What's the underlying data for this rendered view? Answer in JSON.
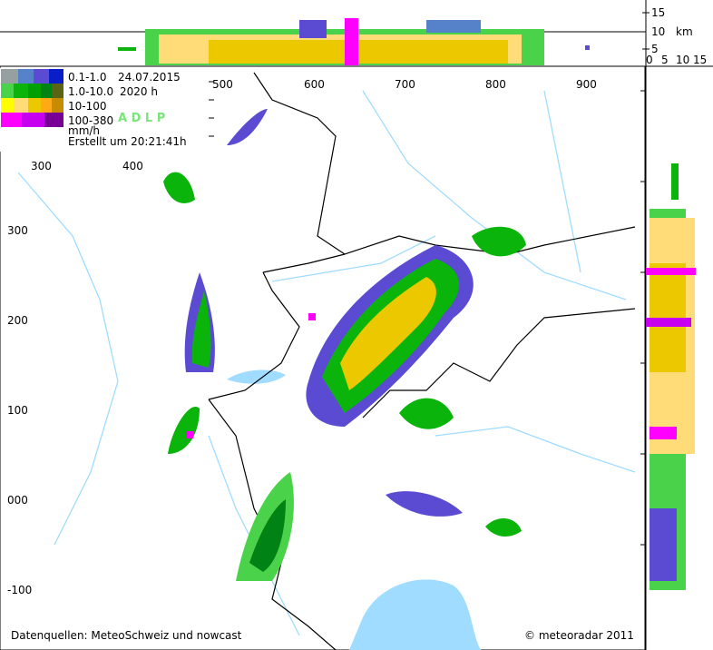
{
  "top_panel": {
    "y_ticks": [
      "15",
      "10",
      "5"
    ],
    "unit": "km"
  },
  "side_panel": {
    "x_ticks": [
      "0",
      "5",
      "10",
      "15"
    ]
  },
  "legend": {
    "rows": [
      {
        "range": "0.1-1.0",
        "colors": [
          "#96a0a0",
          "#5582c8",
          "#5a4bd2",
          "#0a1ec8"
        ]
      },
      {
        "range": "1.0-10.0",
        "colors": [
          "#4bd24b",
          "#0ab40a",
          "#00a000",
          "#008214",
          "#5a6414"
        ]
      },
      {
        "range": "10-100",
        "colors": [
          "#ffff00",
          "#ffdc78",
          "#ebc800",
          "#ffaa14",
          "#c88c00"
        ]
      },
      {
        "range": "100-380",
        "colors": [
          "#ff00ff",
          "#c800f0",
          "#b400e6",
          "#780096"
        ]
      }
    ],
    "unit": "mm/h",
    "date": "24.07.2015",
    "time": "2020  h",
    "product": "A D L P",
    "product_color": "#78e678",
    "created": "Erstellt  um  20:21:41h"
  },
  "map": {
    "x_ticks": [
      "500",
      "600",
      "700",
      "800",
      "900"
    ],
    "x_ticks_lower": [
      "300",
      "400"
    ],
    "y_ticks": [
      "300",
      "200",
      "100",
      "000",
      "-100"
    ],
    "sources": "Datenquellen: MeteoSchweiz und nowcast",
    "copyright": "© meteoradar 2011"
  }
}
